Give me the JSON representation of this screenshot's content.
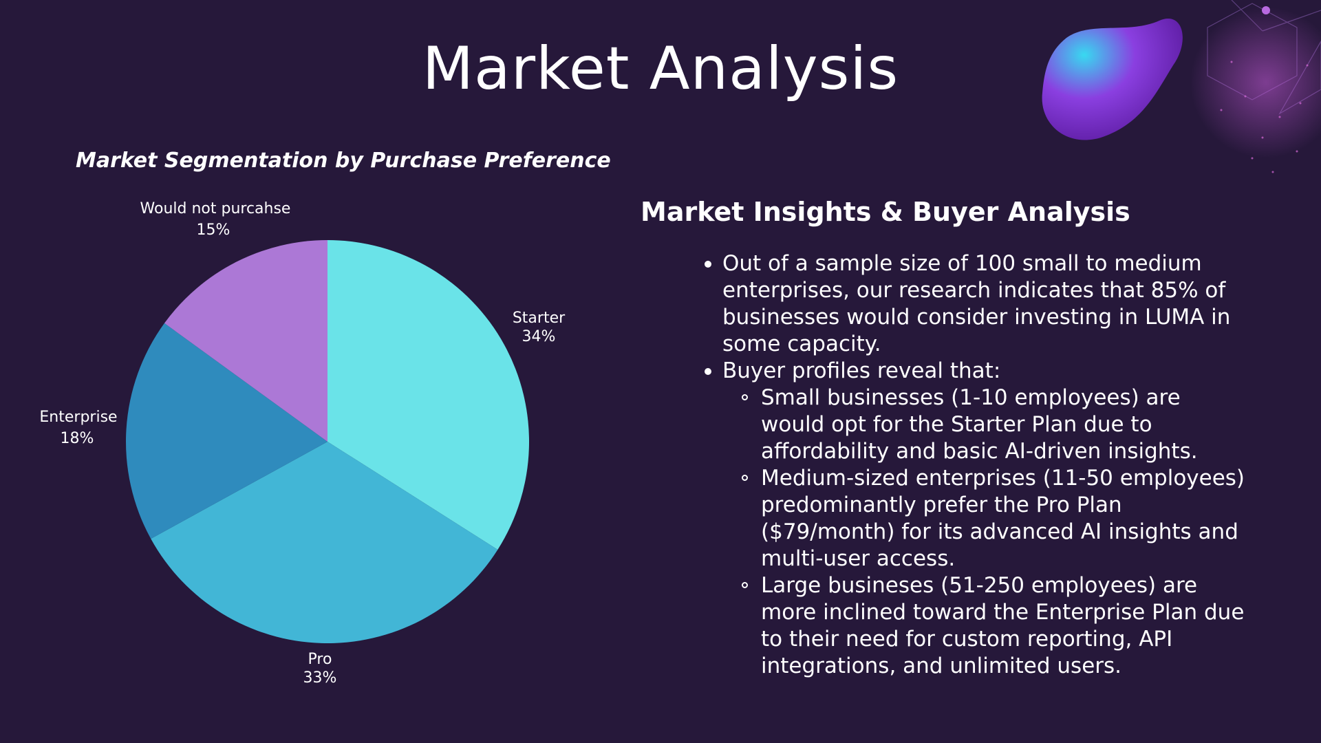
{
  "slide": {
    "title": "Market Analysis"
  },
  "colors": {
    "background": "#26183a",
    "starter": "#6ae3e8",
    "pro": "#42b6d6",
    "enterprise": "#2f8bbd",
    "would_not": "#ac78d6"
  },
  "chart_data": {
    "type": "pie",
    "title": "Market Segmentation by Purchase Preference",
    "categories": [
      "Starter",
      "Pro",
      "Enterprise",
      "Would not purcahse"
    ],
    "values": [
      34,
      33,
      18,
      15
    ],
    "labels": [
      "34%",
      "33%",
      "18%",
      "15%"
    ]
  },
  "insights": {
    "heading": "Market Insights & Buyer Analysis",
    "bullet1": "Out of a sample size of 100 small to medium enterprises, our research indicates that 85% of businesses would consider investing in LUMA in some capacity.",
    "bullet2": "Buyer profiles reveal that:",
    "sub_bullets": [
      "Small businesses (1-10 employees) are would opt for the Starter Plan  due to affordability and basic AI-driven insights.",
      "Medium-sized enterprises (11-50 employees) predominantly prefer the Pro Plan ($79/month) for its advanced AI insights and multi-user access.",
      "Large busineses (51-250 employees) are more inclined toward the Enterprise Plan due to their need for custom reporting, API integrations, and unlimited users."
    ]
  }
}
